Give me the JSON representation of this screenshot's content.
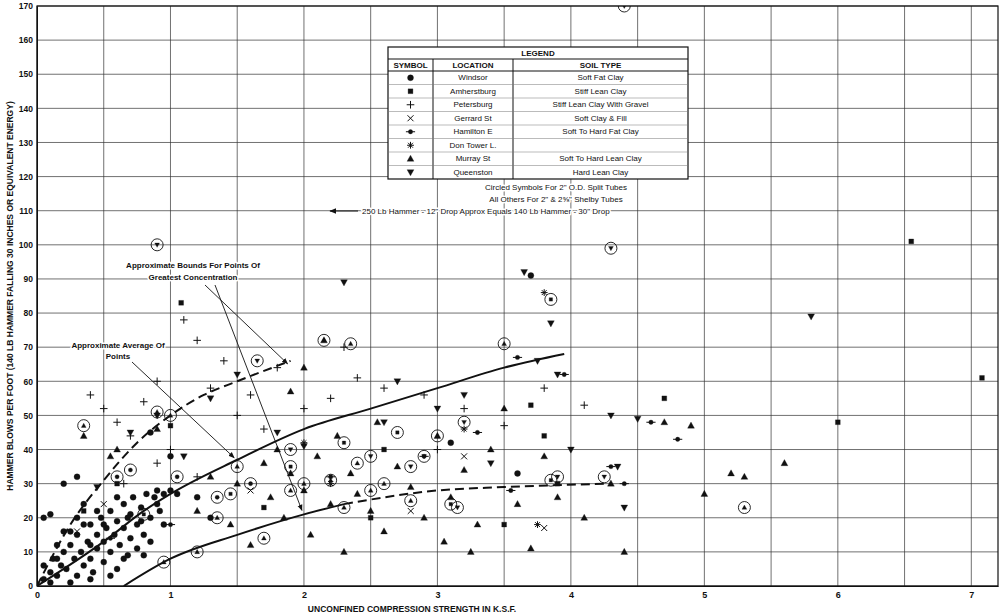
{
  "chart_data": {
    "type": "scatter",
    "x_label": "UNCONFINED COMPRESSION STRENGTH IN K.S.F.",
    "y_label": "HAMMER BLOWS PER FOOT (140 LB HAMMER FALLING 30 INCHES OR EQUIVALENT ENERGY)",
    "xlim": [
      0,
      7.2
    ],
    "xticks": [
      0,
      1,
      2,
      3,
      4,
      5,
      6,
      7
    ],
    "ylim": [
      0,
      170
    ],
    "yticks": [
      0,
      10,
      20,
      30,
      40,
      50,
      60,
      70,
      80,
      90,
      100,
      110,
      120,
      130,
      140,
      150,
      160,
      170
    ],
    "grid": true,
    "legend_table": {
      "title": "LEGEND",
      "headers": [
        "SYMBOL",
        "LOCATION",
        "SOIL TYPE"
      ],
      "soil_types": [
        "Soft Fat Clay",
        "Stiff Lean Clay",
        "Stiff Lean Clay With Gravel",
        "Soft Clay & Fill",
        "Soft To Hard Fat Clay",
        null,
        "Soft To Hard Lean Clay",
        "Hard Lean Clay"
      ]
    },
    "notes": [
      "Circled Symbols For 2\" O.D. Split Tubes",
      "All Others For 2\" & 2⅝\" Shelby Tubes",
      "250 Lb Hammer - 12\" Drop Approx Equals 140 Lb Hammer - 30\" Drop"
    ],
    "annotations": [
      {
        "text": [
          "Approximate Bounds For Points Of",
          "Greatest Concentration"
        ]
      },
      {
        "text": [
          "Approximate Average Of",
          "Points"
        ]
      }
    ],
    "series": [
      {
        "name": "Windsor",
        "type": "scatter",
        "marker": "dot",
        "color": "#111111",
        "x": [
          0.05,
          0.1,
          0.12,
          0.15,
          0.18,
          0.2,
          0.22,
          0.25,
          0.28,
          0.3,
          0.3,
          0.33,
          0.35,
          0.38,
          0.4,
          0.4,
          0.42,
          0.45,
          0.45,
          0.48,
          0.5,
          0.5,
          0.52,
          0.55,
          0.55,
          0.58,
          0.6,
          0.6,
          0.62,
          0.65,
          0.65,
          0.68,
          0.7,
          0.7,
          0.72,
          0.75,
          0.75,
          0.78,
          0.8,
          0.82,
          0.85,
          0.88,
          0.9,
          0.92,
          0.95,
          1.0,
          1.05,
          0.3,
          0.2,
          0.15,
          0.35,
          0.05,
          0.1,
          0.25,
          0.4,
          0.55,
          0.05,
          0.1,
          0.3,
          1.0,
          1.2,
          1.3,
          0.85,
          3.7,
          3.1,
          3.6,
          0.2,
          0.25,
          0.45,
          0.35,
          0.6,
          0.78,
          0.9,
          0.68,
          0.5,
          0.15,
          0.4,
          0.65,
          0.85,
          0.95,
          0.8
        ],
        "values": [
          2,
          4,
          8,
          3,
          6,
          10,
          5,
          12,
          8,
          3,
          15,
          10,
          6,
          13,
          18,
          8,
          4,
          15,
          11,
          20,
          7,
          13,
          17,
          22,
          10,
          15,
          19,
          5,
          12,
          24,
          17,
          9,
          21,
          14,
          26,
          18,
          11,
          23,
          15,
          27,
          20,
          26,
          28,
          22,
          27,
          28,
          27,
          20,
          16,
          12,
          24,
          6,
          1,
          1,
          2,
          3,
          20,
          21,
          32,
          38,
          26,
          20,
          45,
          91,
          42,
          33,
          30,
          16,
          22,
          18,
          26,
          19,
          24,
          20,
          18,
          8,
          12,
          8,
          13,
          18,
          9
        ]
      },
      {
        "name": "Amherstburg",
        "type": "scatter",
        "marker": "square",
        "color": "#111111",
        "x": [
          1.08,
          6.55,
          7.08,
          6.0,
          3.8,
          3.7,
          2.6,
          0.35,
          0.6,
          1.0,
          1.7,
          2.5,
          3.9,
          3.5,
          4.7
        ],
        "values": [
          83,
          101,
          61,
          48,
          44,
          53,
          40,
          22,
          30,
          47,
          23,
          20,
          30,
          18,
          55
        ]
      },
      {
        "name": "Petersburg",
        "type": "scatter",
        "marker": "plus",
        "color": "#111111",
        "x": [
          0.4,
          0.5,
          0.6,
          0.7,
          0.8,
          0.9,
          1.0,
          1.1,
          1.2,
          1.3,
          1.4,
          1.5,
          1.6,
          1.7,
          1.8,
          2.0,
          2.2,
          2.4,
          2.6,
          2.9,
          3.2,
          3.5,
          4.1,
          3.8,
          0.9,
          1.2,
          2.3,
          3.0,
          0.65
        ],
        "values": [
          56,
          52,
          48,
          44,
          54,
          60,
          40,
          78,
          72,
          58,
          66,
          50,
          56,
          46,
          64,
          52,
          55,
          61,
          58,
          56,
          52,
          47,
          53,
          58,
          36,
          32,
          70,
          40,
          30
        ]
      },
      {
        "name": "Gerrard St",
        "type": "scatter",
        "marker": "cross",
        "color": "#111111",
        "x": [
          3.8,
          2.8,
          3.2,
          0.3,
          0.5,
          1.6
        ],
        "values": [
          17,
          22,
          38,
          16,
          24,
          28
        ]
      },
      {
        "name": "Hamilton E",
        "type": "scatter",
        "marker": "barred-circle",
        "color": "#111111",
        "x": [
          3.95,
          3.6,
          4.8,
          4.4,
          3.3,
          2.9,
          4.3,
          0.55,
          1.0,
          2.2,
          3.55,
          4.6
        ],
        "values": [
          62,
          67,
          43,
          30,
          45,
          38,
          35,
          14,
          18,
          32,
          28,
          48
        ]
      },
      {
        "name": "Don Tower L.",
        "type": "scatter",
        "marker": "asterisk",
        "color": "#111111",
        "x": [
          3.8,
          3.75,
          2.2,
          3.2,
          2.0
        ],
        "values": [
          86,
          18,
          30,
          46,
          42
        ]
      },
      {
        "name": "Murray St",
        "type": "scatter",
        "marker": "triangle",
        "color": "#111111",
        "x": [
          0.55,
          0.6,
          1.2,
          1.3,
          1.45,
          1.5,
          1.6,
          1.7,
          1.75,
          1.8,
          1.85,
          1.9,
          2.0,
          2.05,
          2.1,
          2.2,
          2.25,
          2.3,
          2.35,
          2.4,
          2.5,
          2.55,
          2.6,
          2.7,
          2.8,
          2.9,
          3.0,
          3.05,
          3.1,
          3.2,
          3.3,
          3.4,
          3.5,
          3.6,
          3.7,
          3.8,
          3.9,
          4.1,
          4.3,
          4.4,
          4.7,
          4.9,
          5.0,
          5.2,
          5.3,
          5.6,
          2.15,
          2.0,
          1.9,
          0.35,
          0.9,
          3.25
        ],
        "values": [
          38,
          40,
          22,
          32,
          18,
          30,
          12,
          36,
          26,
          40,
          20,
          33,
          28,
          15,
          38,
          24,
          44,
          10,
          33,
          27,
          22,
          48,
          16,
          35,
          29,
          20,
          44,
          13,
          26,
          34,
          18,
          40,
          52,
          24,
          11,
          38,
          26,
          20,
          30,
          10,
          48,
          47,
          27,
          33,
          32,
          36,
          72,
          64,
          57,
          44,
          46,
          10
        ]
      },
      {
        "name": "Queenston",
        "type": "scatter",
        "marker": "triangle-down",
        "color": "#111111",
        "x": [
          1.1,
          1.5,
          1.3,
          0.9,
          2.3,
          3.65,
          3.85,
          4.3,
          4.5,
          4.4,
          5.8,
          3.0,
          3.2,
          2.6,
          3.4,
          2.7,
          4.0,
          3.75,
          2.0,
          1.8,
          0.45,
          0.7,
          3.9,
          4.35
        ],
        "values": [
          38,
          62,
          55,
          50,
          89,
          92,
          77,
          50,
          49,
          23,
          79,
          52,
          56,
          48,
          36,
          60,
          40,
          66,
          41,
          45,
          29,
          45,
          62,
          35
        ]
      },
      {
        "type": "scatter",
        "marker": "circled-triangle-down",
        "color": "#111111",
        "x": [
          4.4,
          0.9,
          4.3,
          1.65,
          2.9,
          3.2,
          2.5,
          3.9,
          4.25,
          2.8,
          1.9,
          3.15
        ],
        "values": [
          170,
          100,
          99,
          66,
          38,
          48,
          38,
          32,
          32,
          35,
          40,
          23
        ]
      },
      {
        "type": "scatter",
        "marker": "circled-triangle",
        "color": "#111111",
        "x": [
          2.15,
          2.35,
          3.5,
          1.0,
          0.35,
          0.9,
          1.5,
          1.9,
          2.3,
          2.0,
          2.8,
          5.3,
          2.5,
          1.2,
          3.0,
          1.35,
          1.7,
          0.95,
          2.2,
          2.6,
          2.4
        ],
        "values": [
          72,
          71,
          71,
          50,
          47,
          51,
          35,
          28,
          23,
          30,
          25,
          23,
          28,
          10,
          44,
          20,
          14,
          7,
          31,
          30,
          36
        ]
      },
      {
        "type": "scatter",
        "marker": "circled-square",
        "color": "#111111",
        "x": [
          3.85,
          3.85,
          1.9,
          2.7,
          3.1,
          1.45,
          2.3,
          0.8
        ],
        "values": [
          84,
          31,
          35,
          45,
          24,
          27,
          42,
          21
        ]
      },
      {
        "type": "scatter",
        "marker": "circled-dot",
        "color": "#111111",
        "x": [
          0.7,
          1.05,
          1.35,
          1.6,
          0.6
        ],
        "values": [
          34,
          32,
          26,
          30,
          32
        ]
      },
      {
        "type": "line",
        "line_style": "solid",
        "color": "#111111",
        "x": [
          0,
          0.2,
          0.5,
          0.8,
          1,
          1.5,
          2,
          2.5,
          3,
          3.5,
          3.95
        ],
        "values": [
          0,
          5,
          13,
          22,
          27,
          37,
          46,
          52,
          58,
          64,
          68
        ]
      },
      {
        "type": "line",
        "line_style": "dashed",
        "color": "#111111",
        "x": [
          0,
          0.25,
          0.5,
          0.75,
          1,
          1.25,
          1.5,
          1.9
        ],
        "values": [
          0,
          18,
          31,
          42,
          50,
          56,
          60,
          66
        ]
      },
      {
        "type": "line",
        "line_style": "solid",
        "color": "#111111",
        "x": [
          0.65,
          1,
          1.5,
          2,
          2.3
        ],
        "values": [
          0,
          8,
          15,
          21,
          24
        ]
      },
      {
        "type": "line",
        "line_style": "dashed",
        "color": "#111111",
        "x": [
          2.3,
          3,
          3.5,
          4.3
        ],
        "values": [
          24,
          28,
          29,
          30
        ]
      }
    ]
  }
}
